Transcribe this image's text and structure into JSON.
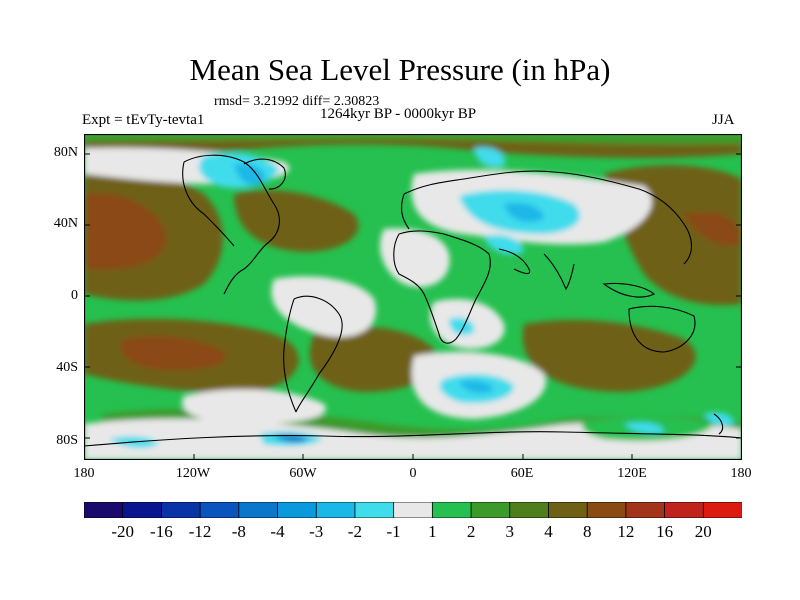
{
  "title": "Mean Sea Level Pressure (in hPa)",
  "stats": "rmsd= 3.21992 diff= 2.30823",
  "period": "1264kyr BP - 0000kyr BP",
  "experiment": "Expt = tEvTy-tevta1",
  "season": "JJA",
  "lat_labels": [
    "80N",
    "40N",
    "0",
    "40S",
    "80S"
  ],
  "lon_labels": [
    "180",
    "120W",
    "60W",
    "0",
    "60E",
    "120E",
    "180"
  ],
  "colorbar": {
    "labels": [
      "-20",
      "-16",
      "-12",
      "-8",
      "-4",
      "-3",
      "-2",
      "-1",
      "1",
      "2",
      "3",
      "4",
      "8",
      "12",
      "16",
      "20"
    ],
    "colors": [
      "#1a0a6b",
      "#0a1590",
      "#0a33a8",
      "#0a55bd",
      "#0a77cc",
      "#0a99dd",
      "#1ab8e8",
      "#3fdcec",
      "#e8e8e8",
      "#25c04f",
      "#3c9a2a",
      "#4e7f1c",
      "#6e6116",
      "#8a4a14",
      "#a2341a",
      "#c0231c",
      "#dd1a10"
    ]
  }
}
